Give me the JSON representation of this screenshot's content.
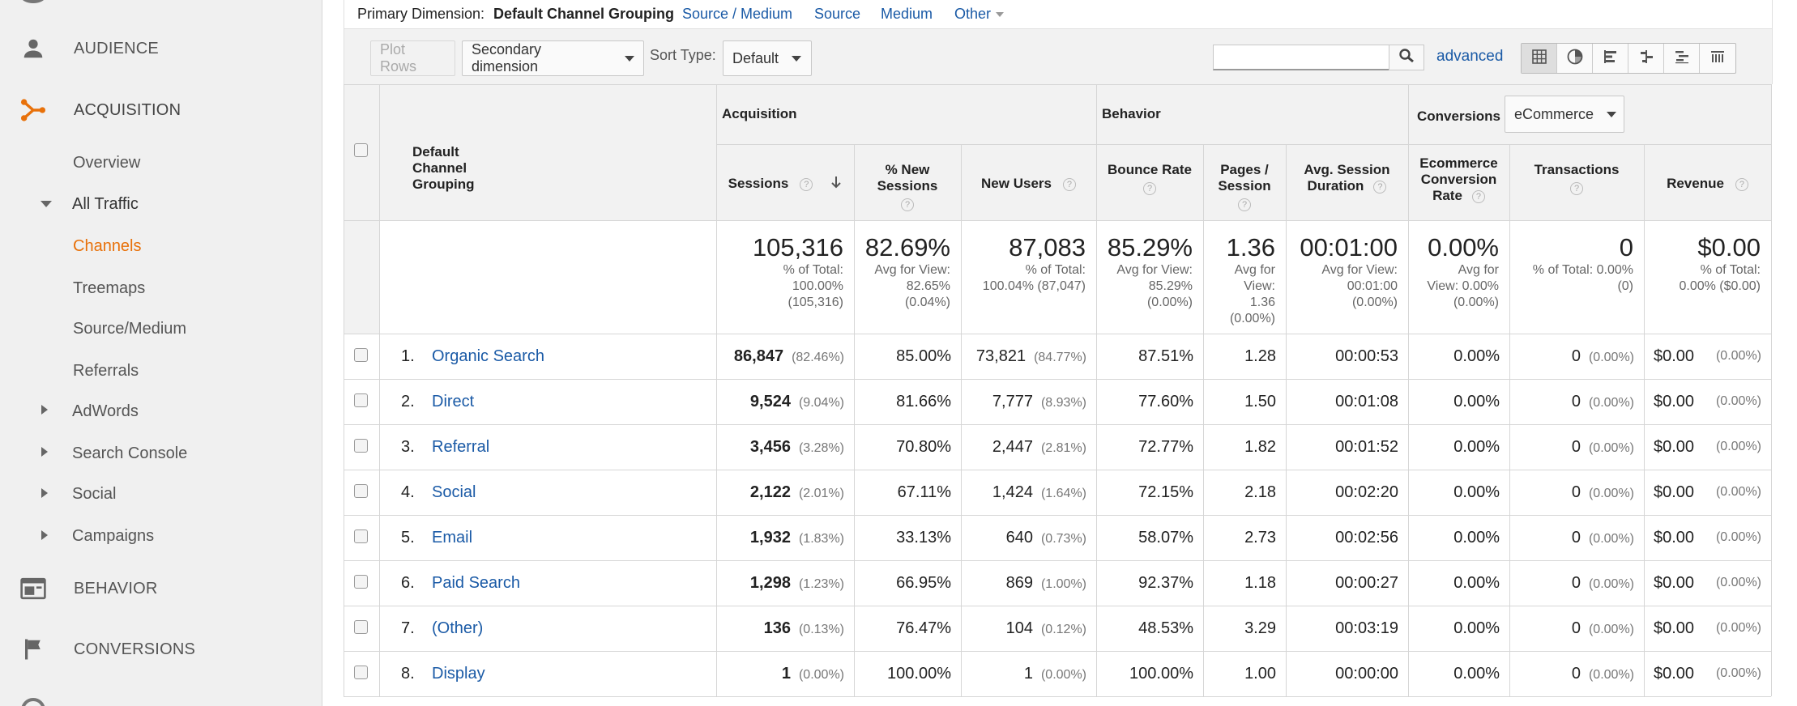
{
  "sidebar": {
    "sections": [
      {
        "name": "audience",
        "label": "AUDIENCE",
        "icon": "person-icon"
      },
      {
        "name": "acquisition",
        "label": "ACQUISITION",
        "icon": "acquisition-icon"
      },
      {
        "name": "behavior",
        "label": "BEHAVIOR",
        "icon": "behavior-icon"
      },
      {
        "name": "conversions",
        "label": "CONVERSIONS",
        "icon": "flag-icon"
      }
    ],
    "items": [
      {
        "label": "Overview"
      },
      {
        "label": "All Traffic"
      },
      {
        "label": "Channels"
      },
      {
        "label": "Treemaps"
      },
      {
        "label": "Source/Medium"
      },
      {
        "label": "Referrals"
      },
      {
        "label": "AdWords"
      },
      {
        "label": "Search Console"
      },
      {
        "label": "Social"
      },
      {
        "label": "Campaigns"
      }
    ]
  },
  "dimension_bar": {
    "label": "Primary Dimension:",
    "current": "Default Channel Grouping",
    "links": [
      "Source / Medium",
      "Source",
      "Medium",
      "Other"
    ]
  },
  "toolbar": {
    "plot_rows": "Plot Rows",
    "secondary_dimension": "Secondary dimension",
    "sort_type_label": "Sort Type:",
    "sort_type_value": "Default",
    "search_value": "",
    "advanced": "advanced"
  },
  "table": {
    "dim_header": "Default Channel Grouping",
    "groups": {
      "acquisition": "Acquisition",
      "behavior": "Behavior",
      "conversions": "Conversions",
      "conversions_select": "eCommerce"
    },
    "columns": [
      {
        "l1": "Sessions",
        "l2": ""
      },
      {
        "l1": "% New",
        "l2": "Sessions"
      },
      {
        "l1": "New Users",
        "l2": ""
      },
      {
        "l1": "Bounce Rate",
        "l2": ""
      },
      {
        "l1": "Pages /",
        "l2": "Session"
      },
      {
        "l1": "Avg. Session",
        "l2": "Duration"
      },
      {
        "l1": "Ecommerce",
        "l2": "Conversion",
        "l3": "Rate"
      },
      {
        "l1": "Transactions",
        "l2": ""
      },
      {
        "l1": "Revenue",
        "l2": ""
      }
    ],
    "help_glyph": "?",
    "totals": [
      {
        "main": "105,316",
        "sub": [
          "% of Total:",
          "100.00%",
          "(105,316)"
        ]
      },
      {
        "main": "82.69%",
        "sub": [
          "Avg for View:",
          "82.65%",
          "(0.04%)"
        ]
      },
      {
        "main": "87,083",
        "sub": [
          "% of Total:",
          "100.04% (87,047)"
        ]
      },
      {
        "main": "85.29%",
        "sub": [
          "Avg for View:",
          "85.29%",
          "(0.00%)"
        ]
      },
      {
        "main": "1.36",
        "sub": [
          "Avg for",
          "View:",
          "1.36",
          "(0.00%)"
        ]
      },
      {
        "main": "00:01:00",
        "sub": [
          "Avg for View:",
          "00:01:00",
          "(0.00%)"
        ]
      },
      {
        "main": "0.00%",
        "sub": [
          "Avg for",
          "View: 0.00%",
          "(0.00%)"
        ]
      },
      {
        "main": "0",
        "sub": [
          "% of Total: 0.00%",
          "(0)"
        ]
      },
      {
        "main": "$0.00",
        "sub": [
          "% of Total:",
          "0.00% ($0.00)"
        ]
      }
    ],
    "rows": [
      {
        "num": "1.",
        "name": "Organic Search",
        "sessions": "86,847",
        "sessions_pct": "(82.46%)",
        "new_sessions": "85.00%",
        "new_users": "73,821",
        "new_users_pct": "(84.77%)",
        "bounce": "87.51%",
        "pages": "1.28",
        "duration": "00:00:53",
        "conv": "0.00%",
        "trans": "0",
        "trans_pct": "(0.00%)",
        "rev": "$0.00",
        "rev_pct": "(0.00%)"
      },
      {
        "num": "2.",
        "name": "Direct",
        "sessions": "9,524",
        "sessions_pct": "(9.04%)",
        "new_sessions": "81.66%",
        "new_users": "7,777",
        "new_users_pct": "(8.93%)",
        "bounce": "77.60%",
        "pages": "1.50",
        "duration": "00:01:08",
        "conv": "0.00%",
        "trans": "0",
        "trans_pct": "(0.00%)",
        "rev": "$0.00",
        "rev_pct": "(0.00%)"
      },
      {
        "num": "3.",
        "name": "Referral",
        "sessions": "3,456",
        "sessions_pct": "(3.28%)",
        "new_sessions": "70.80%",
        "new_users": "2,447",
        "new_users_pct": "(2.81%)",
        "bounce": "72.77%",
        "pages": "1.82",
        "duration": "00:01:52",
        "conv": "0.00%",
        "trans": "0",
        "trans_pct": "(0.00%)",
        "rev": "$0.00",
        "rev_pct": "(0.00%)"
      },
      {
        "num": "4.",
        "name": "Social",
        "sessions": "2,122",
        "sessions_pct": "(2.01%)",
        "new_sessions": "67.11%",
        "new_users": "1,424",
        "new_users_pct": "(1.64%)",
        "bounce": "72.15%",
        "pages": "2.18",
        "duration": "00:02:20",
        "conv": "0.00%",
        "trans": "0",
        "trans_pct": "(0.00%)",
        "rev": "$0.00",
        "rev_pct": "(0.00%)"
      },
      {
        "num": "5.",
        "name": "Email",
        "sessions": "1,932",
        "sessions_pct": "(1.83%)",
        "new_sessions": "33.13%",
        "new_users": "640",
        "new_users_pct": "(0.73%)",
        "bounce": "58.07%",
        "pages": "2.73",
        "duration": "00:02:56",
        "conv": "0.00%",
        "trans": "0",
        "trans_pct": "(0.00%)",
        "rev": "$0.00",
        "rev_pct": "(0.00%)"
      },
      {
        "num": "6.",
        "name": "Paid Search",
        "sessions": "1,298",
        "sessions_pct": "(1.23%)",
        "new_sessions": "66.95%",
        "new_users": "869",
        "new_users_pct": "(1.00%)",
        "bounce": "92.37%",
        "pages": "1.18",
        "duration": "00:00:27",
        "conv": "0.00%",
        "trans": "0",
        "trans_pct": "(0.00%)",
        "rev": "$0.00",
        "rev_pct": "(0.00%)"
      },
      {
        "num": "7.",
        "name": "(Other)",
        "sessions": "136",
        "sessions_pct": "(0.13%)",
        "new_sessions": "76.47%",
        "new_users": "104",
        "new_users_pct": "(0.12%)",
        "bounce": "48.53%",
        "pages": "3.29",
        "duration": "00:03:19",
        "conv": "0.00%",
        "trans": "0",
        "trans_pct": "(0.00%)",
        "rev": "$0.00",
        "rev_pct": "(0.00%)"
      },
      {
        "num": "8.",
        "name": "Display",
        "sessions": "1",
        "sessions_pct": "(0.00%)",
        "new_sessions": "100.00%",
        "new_users": "1",
        "new_users_pct": "(0.00%)",
        "bounce": "100.00%",
        "pages": "1.00",
        "duration": "00:00:00",
        "conv": "0.00%",
        "trans": "0",
        "trans_pct": "(0.00%)",
        "rev": "$0.00",
        "rev_pct": "(0.00%)"
      }
    ]
  },
  "colors": {
    "accent": "#e8710a",
    "link": "#1a5aa6"
  }
}
